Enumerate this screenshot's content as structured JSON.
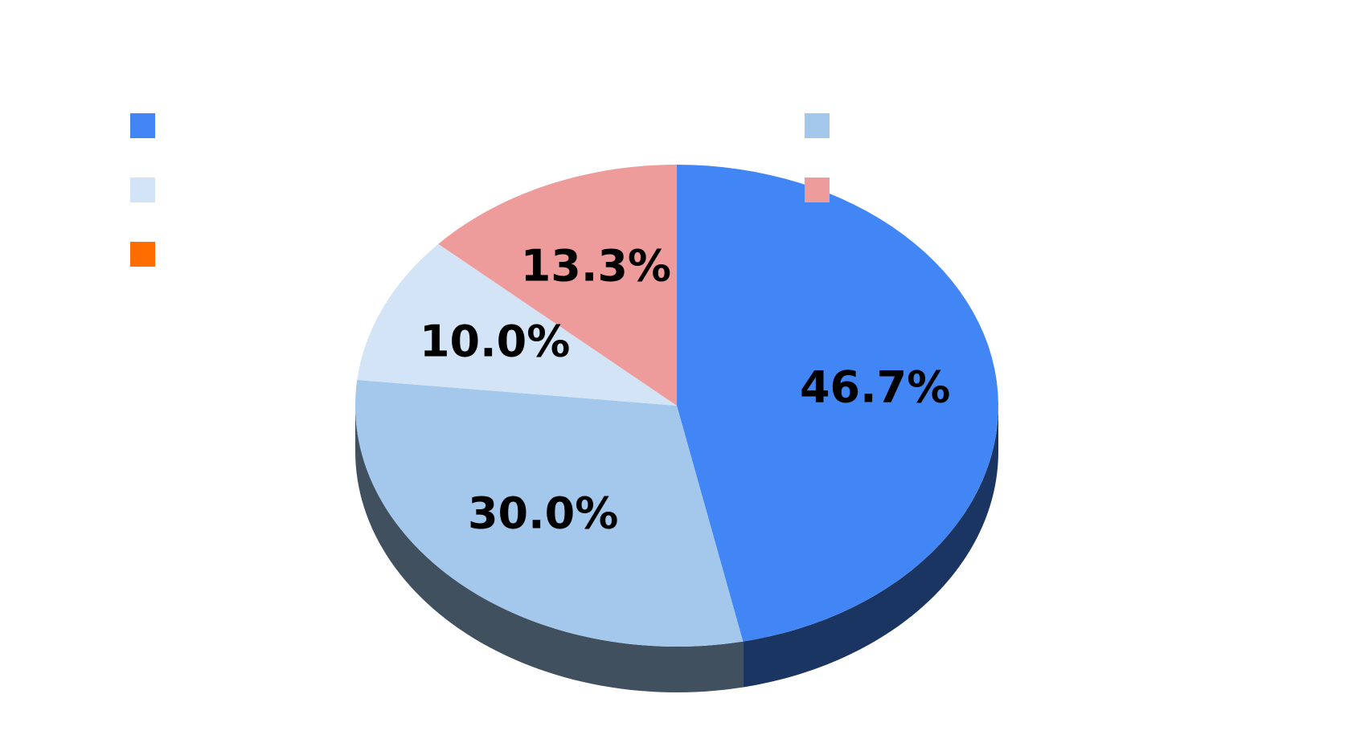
{
  "chart_data": {
    "type": "pie",
    "categories": [
      null,
      null,
      null,
      null,
      null
    ],
    "values": [
      46.7,
      30.0,
      10.0,
      13.3,
      0
    ],
    "value_labels": [
      "46.7%",
      "30.0%",
      "10.0%",
      "13.3%",
      null
    ],
    "colors": [
      "#4285f4",
      "#a4c8ec",
      "#d2e4f6",
      "#ed9c9b",
      "#ff6d00"
    ],
    "legend": "top"
  }
}
